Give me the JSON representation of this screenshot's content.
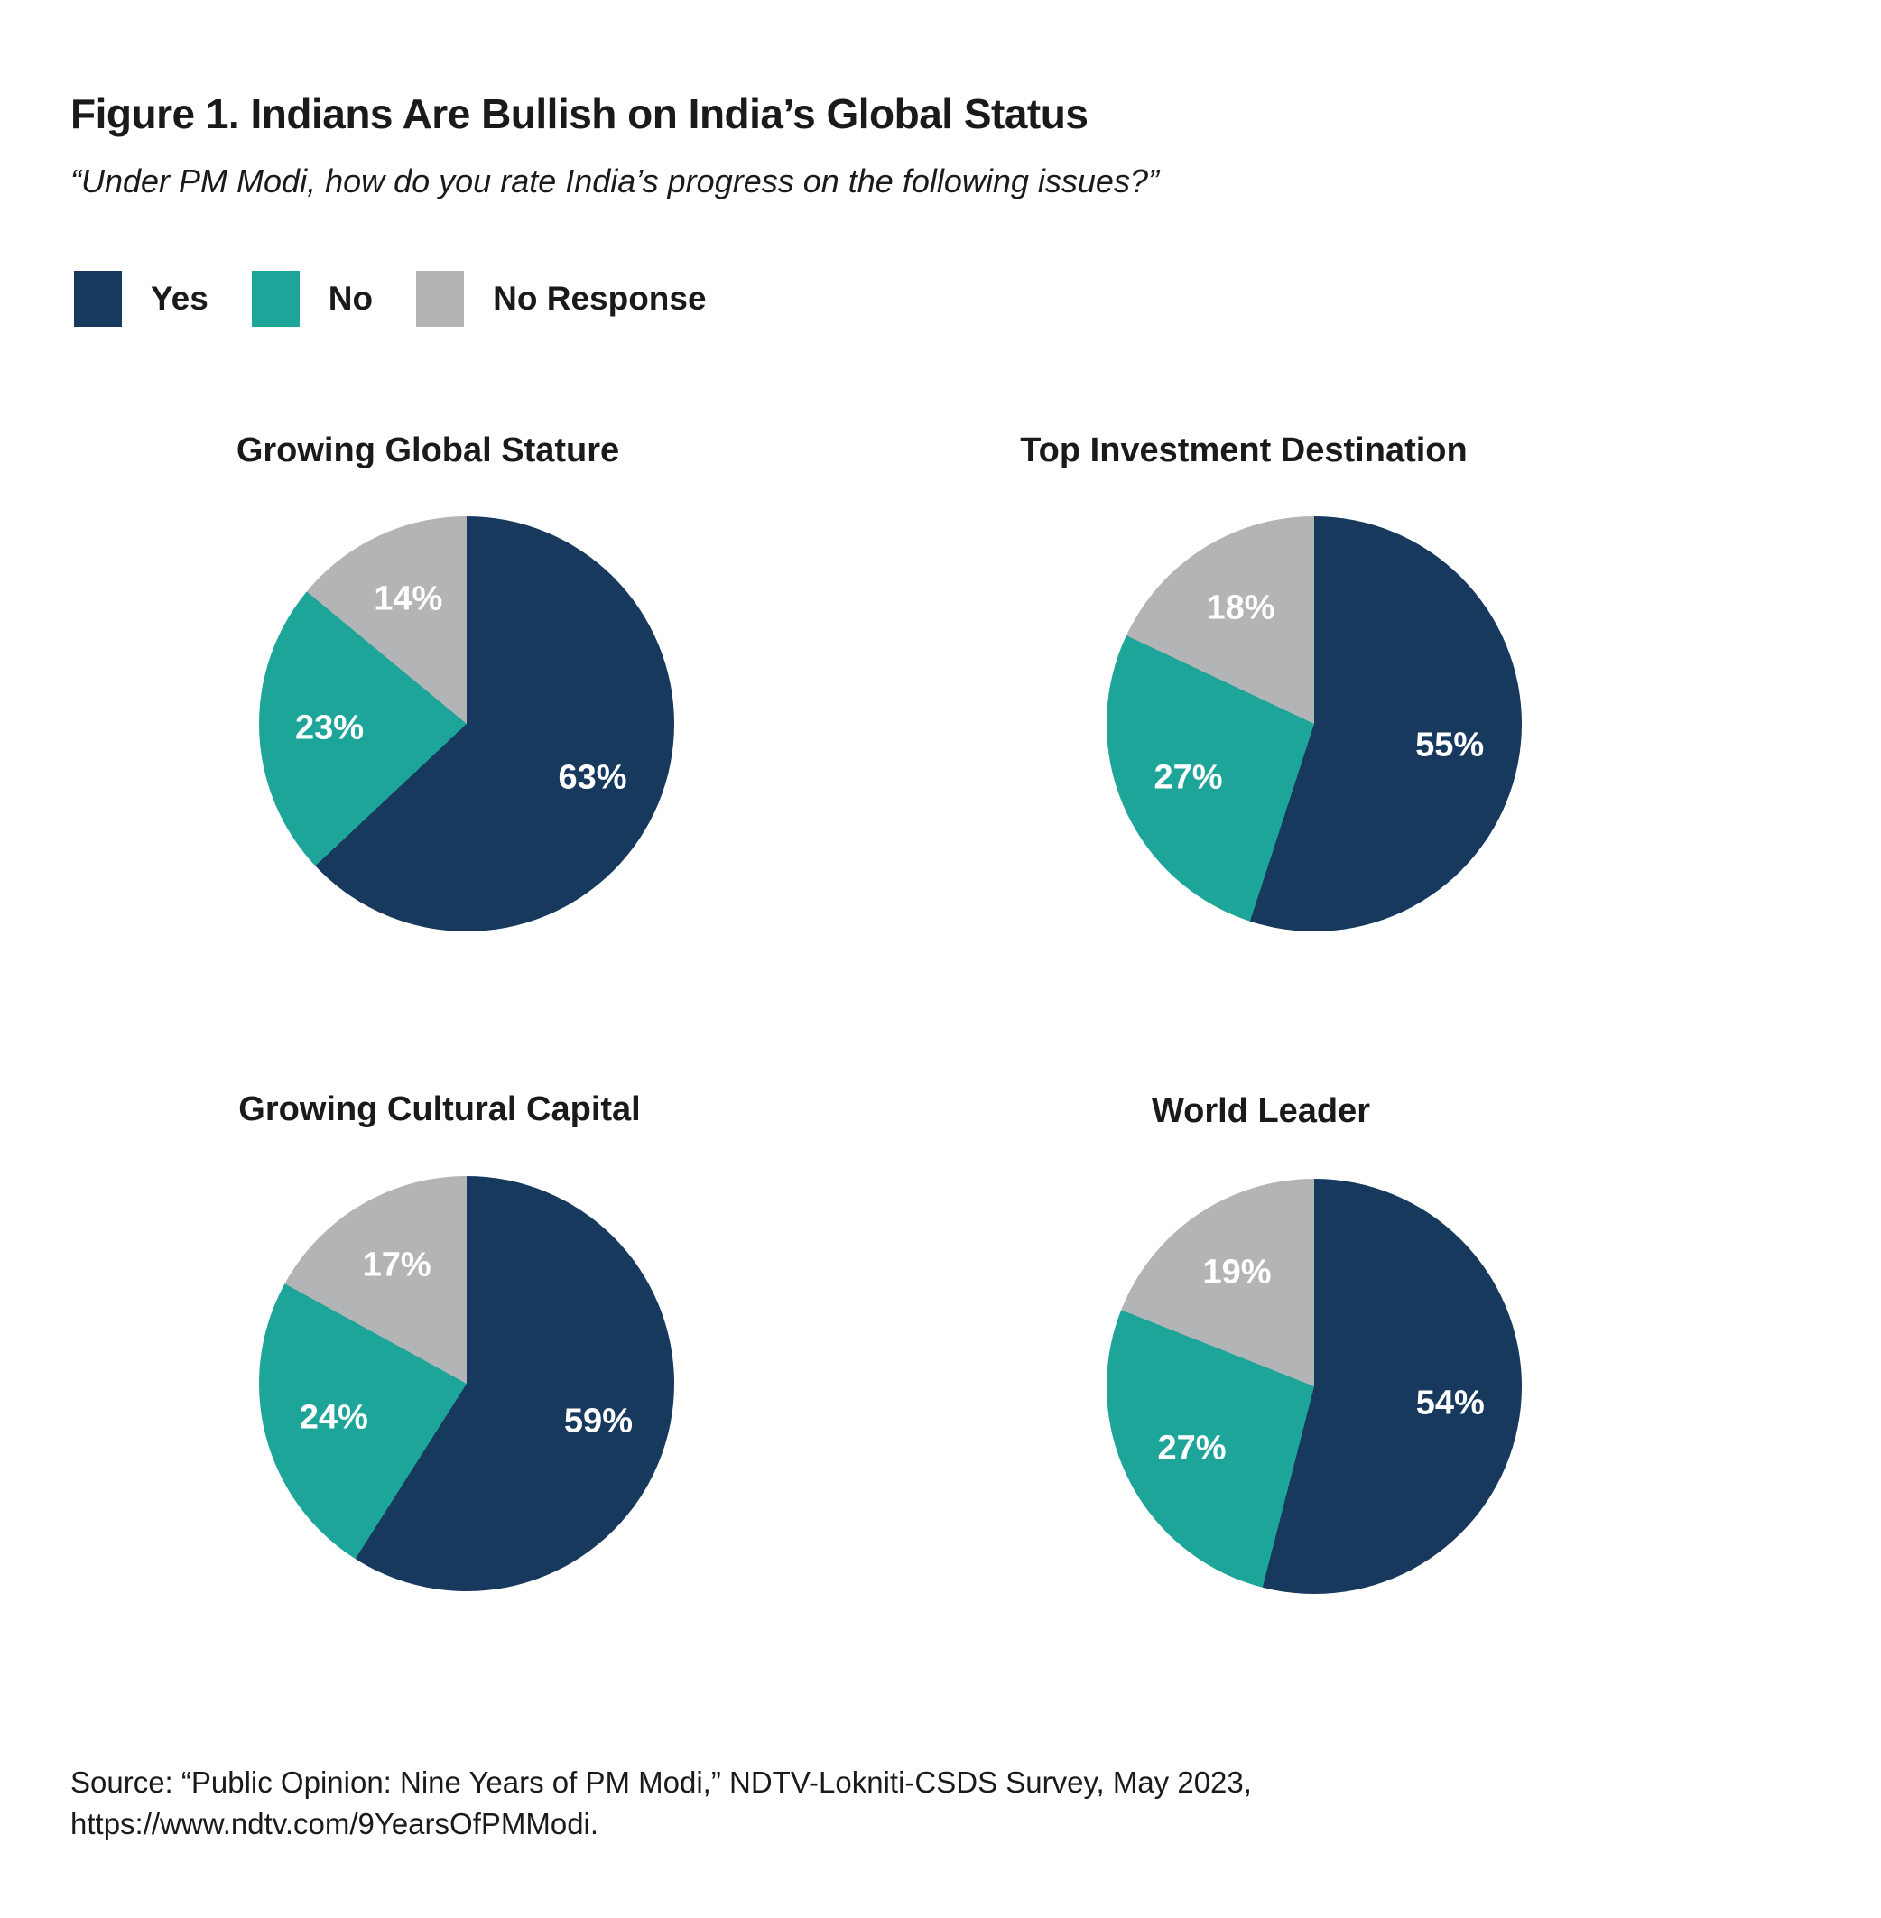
{
  "figure": {
    "title": "Figure 1. Indians Are Bullish on India’s Global Status",
    "subtitle": "“Under PM Modi, how do you rate India’s progress on the following issues?”",
    "source_line1": "Source: “Public Opinion: Nine Years of PM Modi,” NDTV-Lokniti-CSDS Survey, May 2023,",
    "source_line2": "https://www.ndtv.com/9YearsOfPMModi."
  },
  "legend": {
    "position": "top-left",
    "items": [
      {
        "label": "Yes",
        "color": "#17395E"
      },
      {
        "label": "No",
        "color": "#1EA59A"
      },
      {
        "label": "No Response",
        "color": "#B2B4B6"
      }
    ]
  },
  "chart_data": [
    {
      "type": "pie",
      "title": "Growing Global Stature",
      "categories": [
        "Yes",
        "No",
        "No Response"
      ],
      "values": [
        63,
        23,
        14
      ],
      "labels": [
        "63%",
        "23%",
        "14%"
      ],
      "start_angle_deg": 0,
      "direction": "clockwise"
    },
    {
      "type": "pie",
      "title": "Top Investment Destination",
      "categories": [
        "Yes",
        "No",
        "No Response"
      ],
      "values": [
        55,
        27,
        18
      ],
      "labels": [
        "55%",
        "27%",
        "18%"
      ],
      "start_angle_deg": 0,
      "direction": "clockwise"
    },
    {
      "type": "pie",
      "title": "Growing Cultural Capital",
      "categories": [
        "Yes",
        "No",
        "No Response"
      ],
      "values": [
        59,
        24,
        17
      ],
      "labels": [
        "59%",
        "24%",
        "17%"
      ],
      "start_angle_deg": 0,
      "direction": "clockwise"
    },
    {
      "type": "pie",
      "title": "World Leader",
      "categories": [
        "Yes",
        "No",
        "No Response"
      ],
      "values": [
        54,
        27,
        19
      ],
      "labels": [
        "54%",
        "27%",
        "19%"
      ],
      "start_angle_deg": 0,
      "direction": "clockwise"
    }
  ]
}
